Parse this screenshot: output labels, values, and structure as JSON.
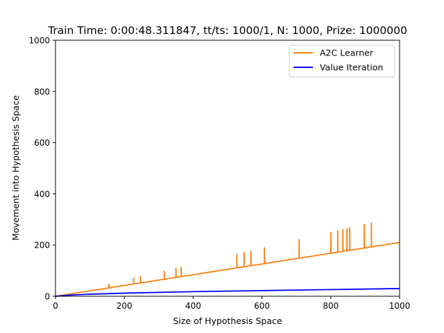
{
  "chart_data": {
    "type": "line",
    "title": "Train Time: 0:00:48.311847, tt/ts: 1000/1, N: 1000, Prize: 1000000",
    "xlabel": "Size of Hypothesis Space",
    "ylabel": "Movement into Hypothesis Space",
    "xlim": [
      0,
      1000
    ],
    "ylim": [
      0,
      1000
    ],
    "xticks": [
      0,
      200,
      400,
      600,
      800,
      1000
    ],
    "yticks": [
      0,
      200,
      400,
      600,
      800,
      1000
    ],
    "grid": false,
    "legend_position": "top-right",
    "series": [
      {
        "name": "A2C Learner",
        "color": "#ff7f0e",
        "trend": {
          "x": [
            0,
            1000
          ],
          "y": [
            0,
            210
          ]
        },
        "spikes": [
          {
            "x": 155,
            "y": 49
          },
          {
            "x": 227,
            "y": 72
          },
          {
            "x": 247,
            "y": 79
          },
          {
            "x": 316,
            "y": 100
          },
          {
            "x": 350,
            "y": 111
          },
          {
            "x": 365,
            "y": 115
          },
          {
            "x": 527,
            "y": 166
          },
          {
            "x": 548,
            "y": 172
          },
          {
            "x": 568,
            "y": 178
          },
          {
            "x": 607,
            "y": 191
          },
          {
            "x": 708,
            "y": 223
          },
          {
            "x": 800,
            "y": 251
          },
          {
            "x": 820,
            "y": 257
          },
          {
            "x": 835,
            "y": 262
          },
          {
            "x": 847,
            "y": 265
          },
          {
            "x": 855,
            "y": 268
          },
          {
            "x": 897,
            "y": 282
          },
          {
            "x": 918,
            "y": 288
          }
        ]
      },
      {
        "name": "Value Iteration",
        "color": "#0000ff",
        "x": [
          0,
          50,
          100,
          200,
          300,
          400,
          500,
          600,
          700,
          800,
          900,
          1000
        ],
        "y": [
          0,
          5,
          8,
          12,
          15,
          18,
          20,
          22,
          24,
          26,
          28,
          30
        ]
      }
    ]
  }
}
